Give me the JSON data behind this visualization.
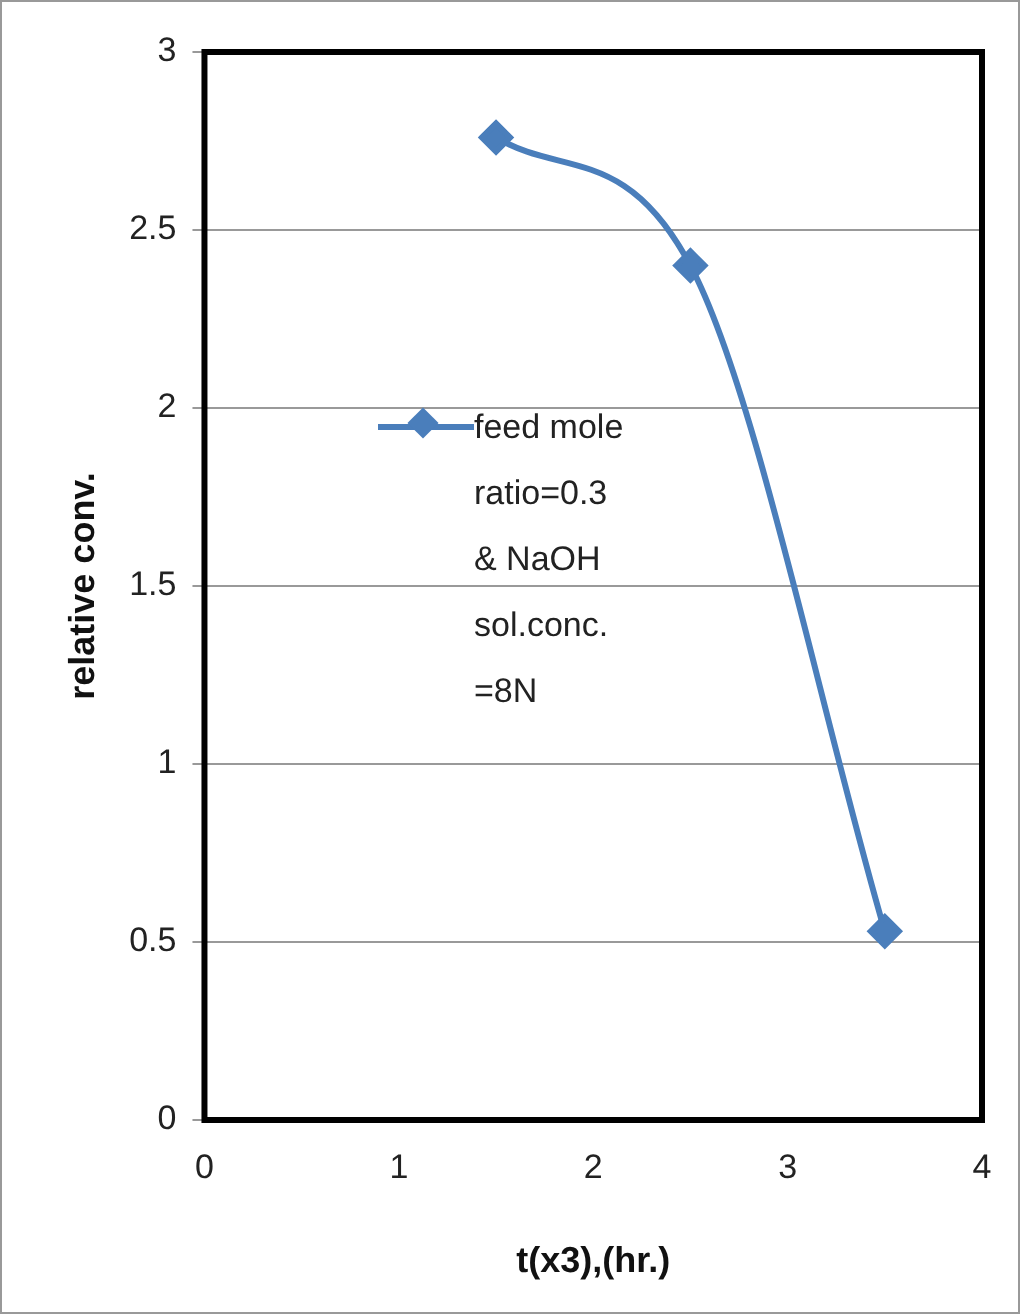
{
  "chart_data": {
    "type": "line",
    "xlabel": "t(x3),(hr.)",
    "ylabel": "relative conv.",
    "x": [
      1.5,
      2.5,
      3.5
    ],
    "series": [
      {
        "name": "feed mole ratio=0.3 & NaOH sol.conc. =8N",
        "color": "#4a7ebb",
        "values": [
          2.76,
          2.4,
          0.53
        ]
      }
    ],
    "xlim": [
      0,
      4
    ],
    "xticks": [
      0,
      1,
      2,
      3,
      4
    ],
    "ylim": [
      0,
      3
    ],
    "yticks": [
      0,
      0.5,
      1,
      1.5,
      2,
      2.5,
      3
    ],
    "grid": "y",
    "legend": "left",
    "marker": "diamond",
    "line_style": "solid"
  }
}
